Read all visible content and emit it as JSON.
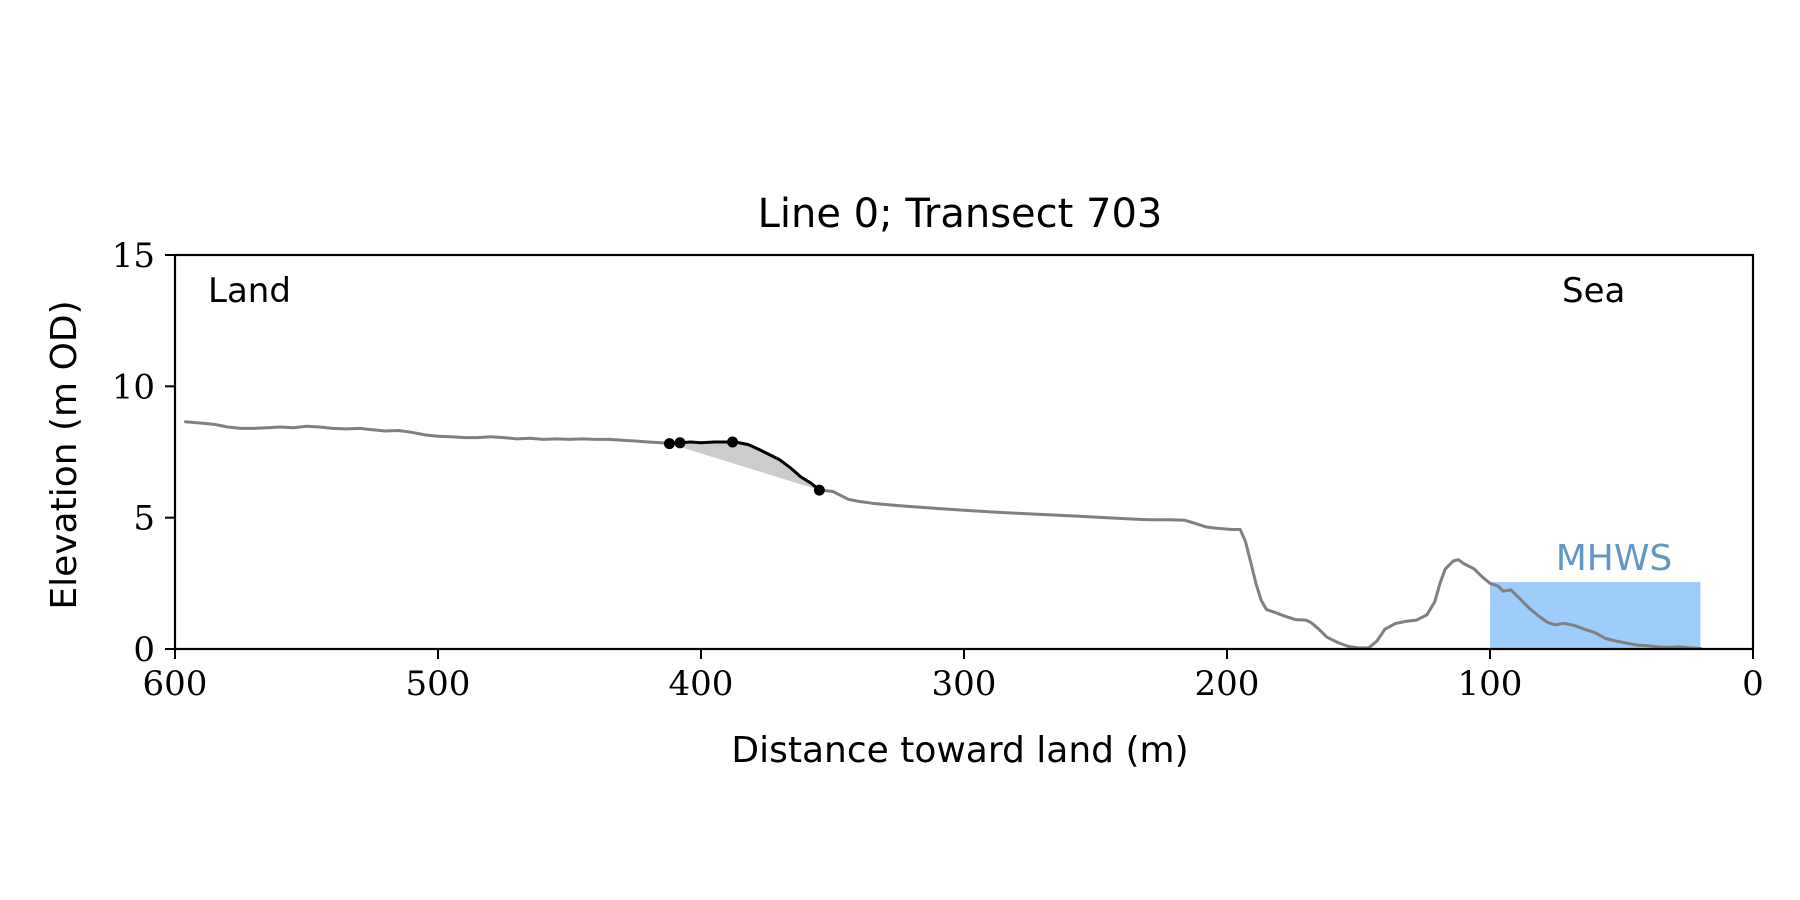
{
  "chart_data": {
    "type": "line",
    "title": "Line 0; Transect 703",
    "xlabel": "Distance toward land (m)",
    "ylabel": "Elevation (m OD)",
    "xlim": [
      600,
      0
    ],
    "ylim": [
      0,
      15
    ],
    "x_reversed": true,
    "xticks": [
      600,
      500,
      400,
      300,
      200,
      100,
      0
    ],
    "yticks": [
      0,
      5,
      10,
      15
    ],
    "grid": false,
    "annotations": [
      {
        "text": "Land",
        "position": "top-left"
      },
      {
        "text": "Sea",
        "position": "top-right"
      },
      {
        "text": "MHWS",
        "position": "above water fill, right side"
      }
    ],
    "colors": {
      "profile": "#808080",
      "feature": "#000000",
      "shading": "#cccccc",
      "water": "#9fcdfa",
      "mhws_label": "#6196c8"
    },
    "series": [
      {
        "type": "line",
        "color": "#808080",
        "points": [
          [
            596,
            8.65
          ],
          [
            590,
            8.6
          ],
          [
            585,
            8.55
          ],
          [
            580,
            8.45
          ],
          [
            575,
            8.4
          ],
          [
            570,
            8.4
          ],
          [
            565,
            8.42
          ],
          [
            560,
            8.45
          ],
          [
            555,
            8.42
          ],
          [
            550,
            8.48
          ],
          [
            545,
            8.45
          ],
          [
            540,
            8.4
          ],
          [
            535,
            8.38
          ],
          [
            530,
            8.4
          ],
          [
            525,
            8.35
          ],
          [
            520,
            8.3
          ],
          [
            515,
            8.32
          ],
          [
            510,
            8.25
          ],
          [
            505,
            8.15
          ],
          [
            500,
            8.1
          ],
          [
            495,
            8.08
          ],
          [
            490,
            8.05
          ],
          [
            485,
            8.05
          ],
          [
            480,
            8.08
          ],
          [
            475,
            8.05
          ],
          [
            470,
            8.0
          ],
          [
            465,
            8.02
          ],
          [
            460,
            7.98
          ],
          [
            455,
            8.0
          ],
          [
            450,
            7.98
          ],
          [
            445,
            8.0
          ],
          [
            440,
            7.98
          ],
          [
            435,
            7.98
          ],
          [
            430,
            7.95
          ],
          [
            425,
            7.92
          ],
          [
            420,
            7.88
          ],
          [
            415,
            7.85
          ],
          [
            412,
            7.82
          ]
        ]
      },
      {
        "type": "line",
        "color": "#000000",
        "points": [
          [
            412,
            7.82
          ],
          [
            408,
            7.85
          ],
          [
            404,
            7.88
          ],
          [
            400,
            7.85
          ],
          [
            395,
            7.88
          ],
          [
            390,
            7.88
          ],
          [
            386,
            7.86
          ],
          [
            382,
            7.78
          ],
          [
            378,
            7.6
          ],
          [
            374,
            7.4
          ],
          [
            370,
            7.2
          ],
          [
            366,
            6.9
          ],
          [
            362,
            6.55
          ],
          [
            358,
            6.3
          ],
          [
            355,
            6.05
          ]
        ]
      },
      {
        "type": "line",
        "color": "#808080",
        "points": [
          [
            355,
            6.05
          ],
          [
            350,
            6.0
          ],
          [
            347,
            5.85
          ],
          [
            344,
            5.7
          ],
          [
            340,
            5.62
          ],
          [
            335,
            5.55
          ],
          [
            330,
            5.5
          ],
          [
            320,
            5.42
          ],
          [
            310,
            5.35
          ],
          [
            300,
            5.28
          ],
          [
            290,
            5.22
          ],
          [
            280,
            5.17
          ],
          [
            270,
            5.12
          ],
          [
            260,
            5.07
          ],
          [
            250,
            5.02
          ],
          [
            240,
            4.97
          ],
          [
            230,
            4.92
          ],
          [
            222,
            4.92
          ],
          [
            216,
            4.9
          ],
          [
            212,
            4.78
          ],
          [
            208,
            4.65
          ],
          [
            204,
            4.6
          ],
          [
            198,
            4.55
          ],
          [
            195,
            4.55
          ],
          [
            193,
            4.1
          ],
          [
            191,
            3.3
          ],
          [
            189,
            2.5
          ],
          [
            187,
            1.85
          ],
          [
            185,
            1.5
          ],
          [
            182,
            1.4
          ],
          [
            178,
            1.25
          ],
          [
            174,
            1.12
          ],
          [
            170,
            1.1
          ],
          [
            168,
            1.0
          ],
          [
            165,
            0.75
          ],
          [
            162,
            0.45
          ],
          [
            158,
            0.25
          ],
          [
            154,
            0.1
          ],
          [
            150,
            0.04
          ],
          [
            146,
            0.05
          ],
          [
            143,
            0.3
          ],
          [
            140,
            0.75
          ],
          [
            136,
            0.97
          ],
          [
            132,
            1.05
          ],
          [
            128,
            1.1
          ],
          [
            124,
            1.3
          ],
          [
            121,
            1.8
          ],
          [
            119,
            2.5
          ],
          [
            117,
            3.05
          ],
          [
            114,
            3.35
          ],
          [
            112,
            3.4
          ],
          [
            110,
            3.25
          ],
          [
            106,
            3.05
          ],
          [
            103,
            2.75
          ],
          [
            100,
            2.5
          ],
          [
            97,
            2.4
          ],
          [
            95,
            2.2
          ],
          [
            92,
            2.25
          ],
          [
            90,
            2.05
          ],
          [
            88,
            1.85
          ],
          [
            85,
            1.55
          ],
          [
            82,
            1.3
          ],
          [
            78,
            1.0
          ],
          [
            75,
            0.92
          ],
          [
            72,
            0.98
          ],
          [
            68,
            0.9
          ],
          [
            64,
            0.75
          ],
          [
            60,
            0.62
          ],
          [
            56,
            0.4
          ],
          [
            52,
            0.3
          ],
          [
            48,
            0.22
          ],
          [
            44,
            0.15
          ],
          [
            40,
            0.12
          ],
          [
            36,
            0.08
          ],
          [
            32,
            0.06
          ],
          [
            28,
            0.08
          ],
          [
            24,
            0.04
          ],
          [
            20,
            0.02
          ]
        ]
      }
    ],
    "markers": [
      [
        412,
        7.82
      ],
      [
        408,
        7.85
      ],
      [
        388,
        7.88
      ],
      [
        355,
        6.05
      ]
    ],
    "shaded_region": {
      "upper": [
        [
          412,
          7.82
        ],
        [
          408,
          7.85
        ],
        [
          404,
          7.88
        ],
        [
          400,
          7.85
        ],
        [
          395,
          7.88
        ],
        [
          390,
          7.88
        ],
        [
          386,
          7.86
        ],
        [
          382,
          7.78
        ],
        [
          378,
          7.6
        ],
        [
          374,
          7.4
        ],
        [
          370,
          7.2
        ],
        [
          366,
          6.9
        ],
        [
          362,
          6.55
        ],
        [
          358,
          6.3
        ],
        [
          355,
          6.05
        ]
      ],
      "lower": [
        [
          412,
          7.82
        ],
        [
          355,
          6.05
        ]
      ]
    },
    "water_fill": {
      "label": "MHWS",
      "level": 2.55,
      "x_start": 100,
      "x_end": 20
    }
  }
}
